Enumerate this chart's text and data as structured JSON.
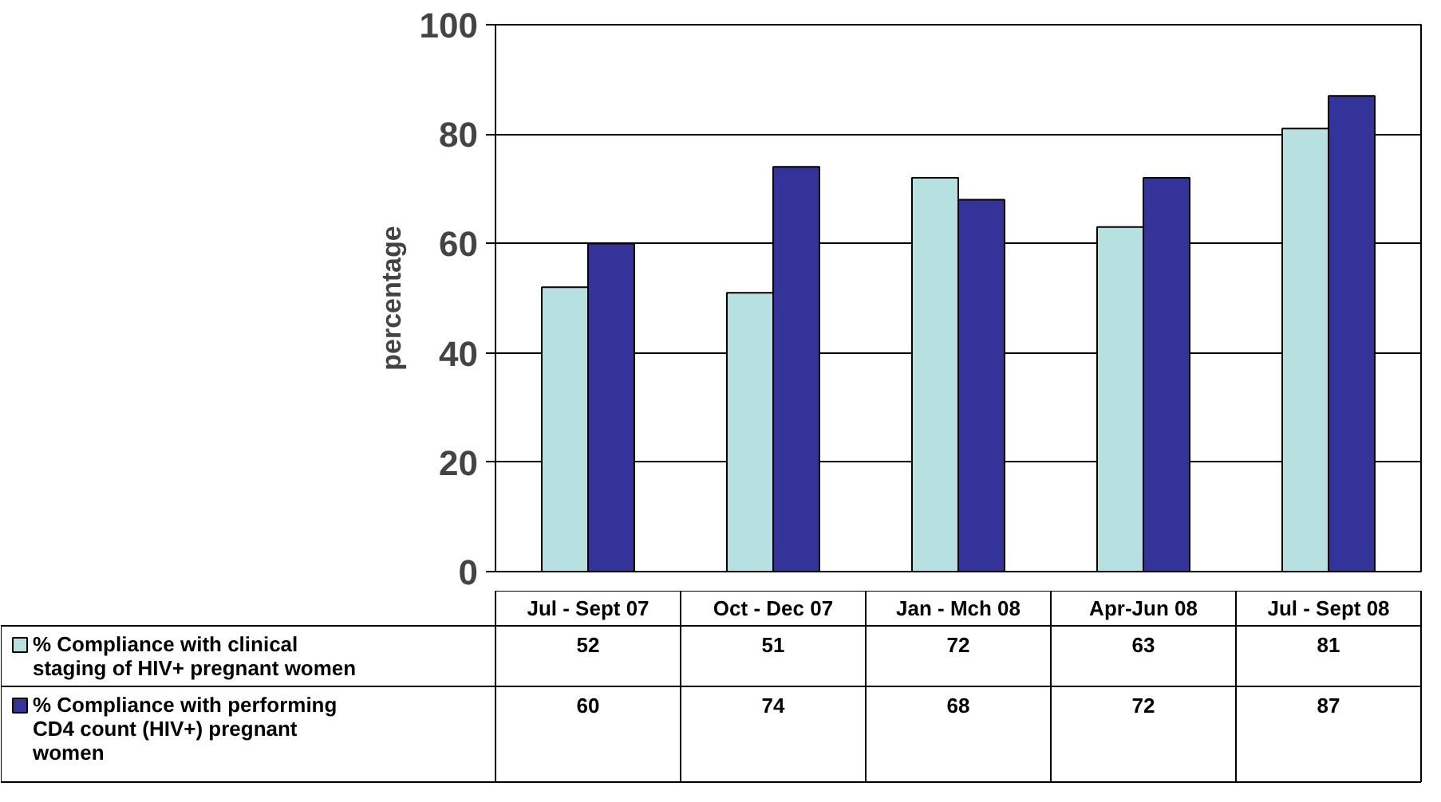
{
  "chart_data": {
    "type": "bar",
    "ylabel": "percentage",
    "categories": [
      "Jul - Sept 07",
      "Oct - Dec 07",
      "Jan - Mch 08",
      "Apr-Jun 08",
      "Jul - Sept 08"
    ],
    "series": [
      {
        "name": "% Compliance with clinical staging of HIV+ pregnant women",
        "color": "#b7e0e0",
        "values": [
          52,
          51,
          72,
          63,
          81
        ]
      },
      {
        "name": "% Compliance with performing CD4 count (HIV+) pregnant women",
        "color": "#333399",
        "values": [
          60,
          74,
          68,
          72,
          87
        ]
      }
    ],
    "ylim": [
      0,
      100
    ],
    "yticks": [
      0,
      20,
      40,
      60,
      80,
      100
    ],
    "grid": "y",
    "legend": "bottom left",
    "data_labels": true
  }
}
